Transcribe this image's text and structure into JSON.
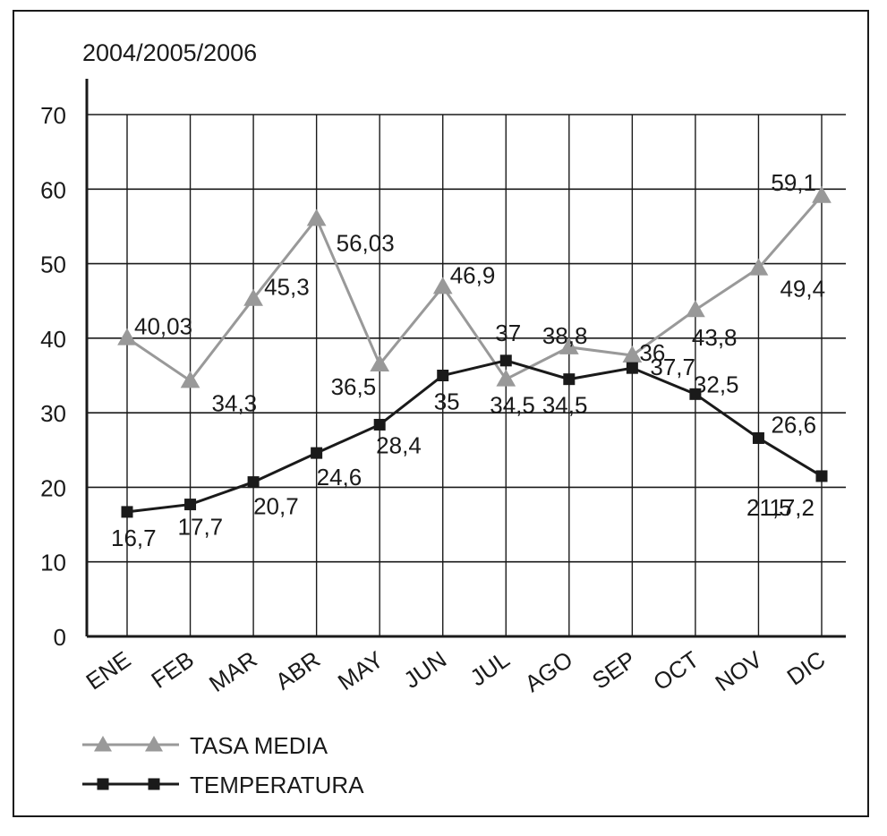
{
  "chart_data": {
    "type": "line",
    "title": "",
    "subtitle": "2004/2005/2006",
    "xlabel": "",
    "ylabel": "",
    "categories": [
      "ENE",
      "FEB",
      "MAR",
      "ABR",
      "MAY",
      "JUN",
      "JUL",
      "AGO",
      "SEP",
      "OCT",
      "NOV",
      "DIC"
    ],
    "ylim": [
      0,
      70
    ],
    "yticks": [
      0,
      10,
      20,
      30,
      40,
      50,
      60,
      70
    ],
    "grid": true,
    "legend_position": "bottom-left",
    "series": [
      {
        "name": "TASA MEDIA",
        "color": "#999999",
        "marker": "triangle",
        "x": [
          0,
          1,
          2,
          3,
          4,
          5,
          6,
          7,
          8,
          9,
          10,
          11
        ],
        "values": [
          40.03,
          34.3,
          45.3,
          56.03,
          36.5,
          46.9,
          34.5,
          38.8,
          37.7,
          43.8,
          49.4,
          59.1
        ],
        "labels": [
          "40,03",
          "34,3",
          "45,3",
          "56,03",
          "36,5",
          "46,9",
          "34,5",
          "38,8",
          "37,7",
          "43,8",
          "49,4",
          "59,1"
        ]
      },
      {
        "name": "TEMPERATURA",
        "color": "#1a1a1a",
        "marker": "square",
        "x": [
          0,
          1,
          2,
          3,
          4,
          5,
          6,
          7,
          8,
          9,
          10,
          11
        ],
        "values": [
          16.7,
          17.7,
          20.7,
          24.6,
          28.4,
          35,
          37,
          34.5,
          36,
          32.5,
          26.6,
          21.5
        ],
        "labels": [
          "16,7",
          "17,7",
          "20,7",
          "24,6",
          "28,4",
          "35",
          "37",
          "34,5",
          "36",
          "32,5",
          "26,6",
          "21,5"
        ]
      }
    ],
    "annotations": [
      "17,2"
    ]
  }
}
